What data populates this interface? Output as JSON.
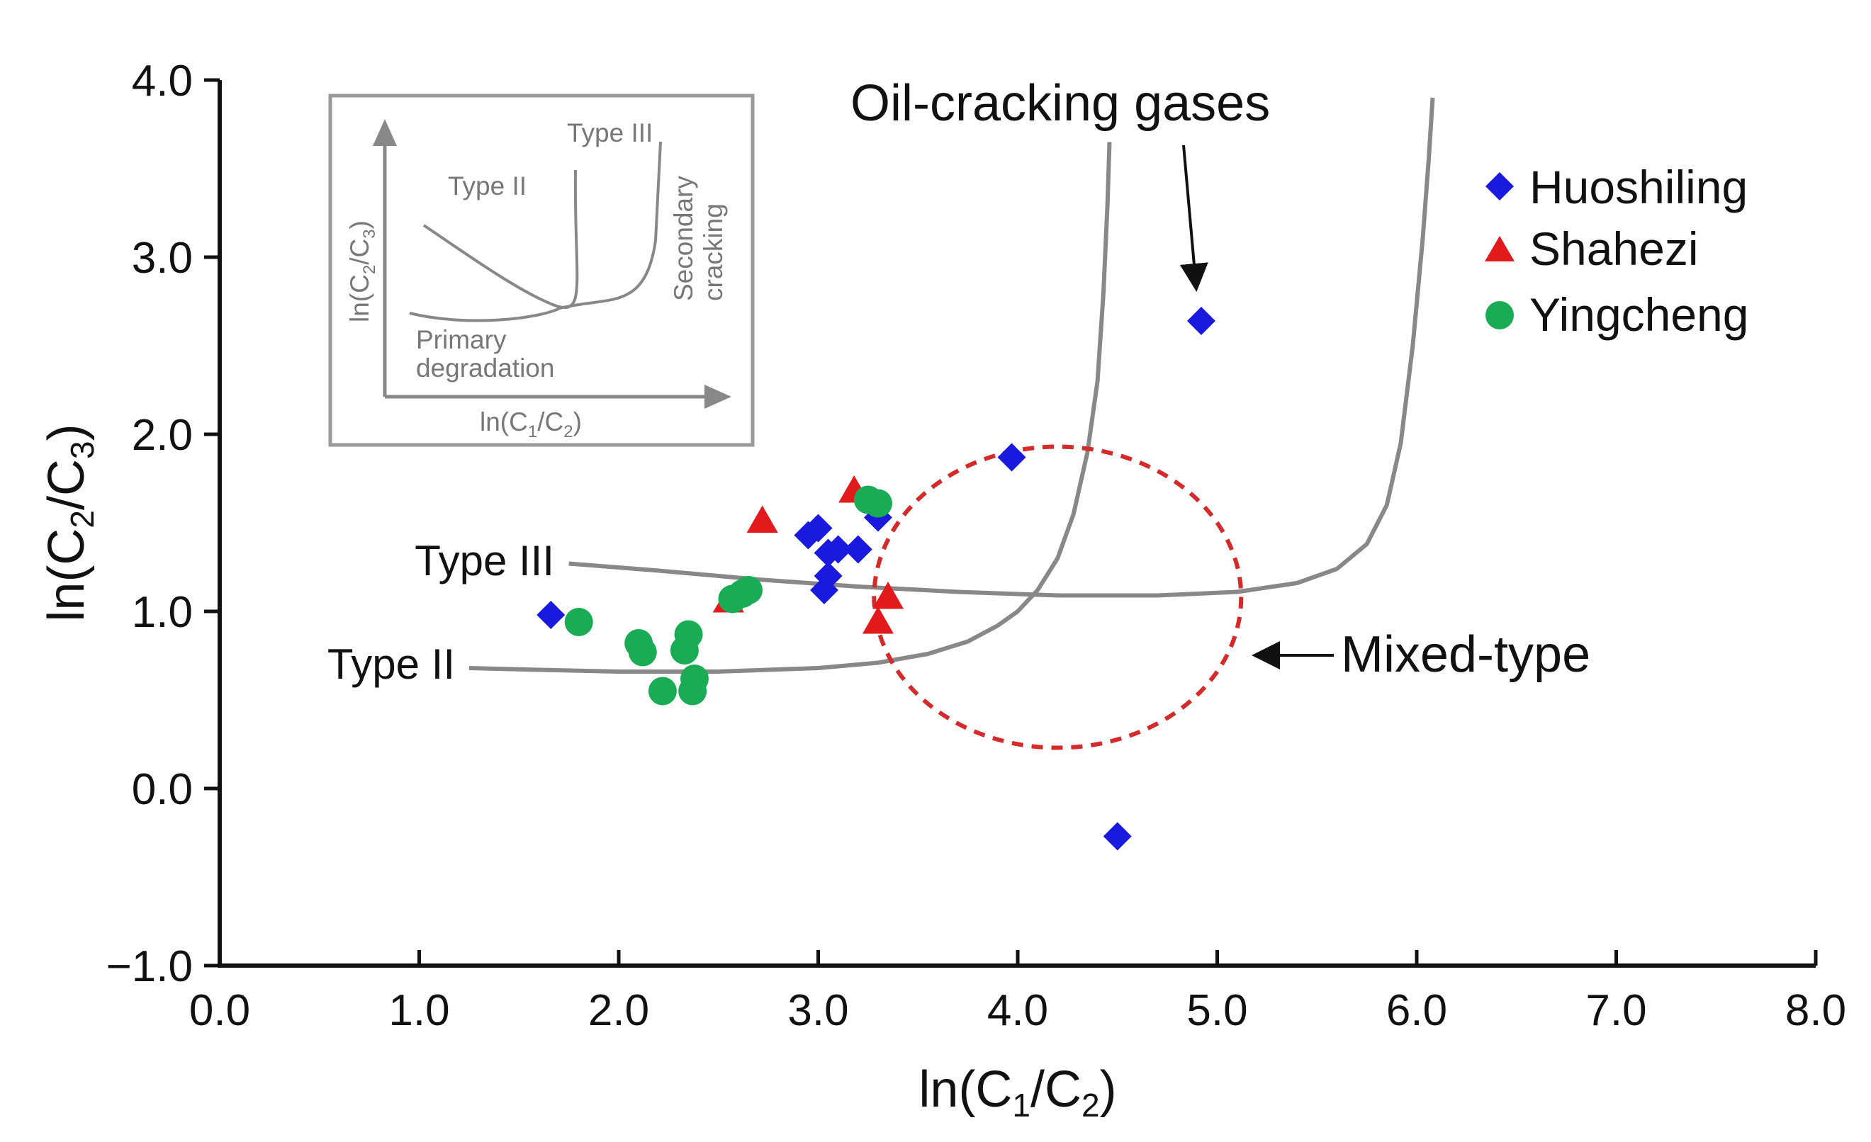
{
  "chart_data": {
    "type": "scatter",
    "xlabel": "ln(C1/C2)",
    "ylabel": "ln(C2/C3)",
    "xlim": [
      0.0,
      8.0
    ],
    "ylim": [
      -1.0,
      4.0
    ],
    "x_ticks": [
      "0.0",
      "1.0",
      "2.0",
      "3.0",
      "4.0",
      "5.0",
      "6.0",
      "7.0",
      "8.0"
    ],
    "y_ticks": [
      "−1.0",
      "0.0",
      "1.0",
      "2.0",
      "3.0",
      "4.0"
    ],
    "colors": {
      "Huoshiling": "#1a1adf",
      "Shahezi": "#e31a1c",
      "Yingcheng": "#1aab55",
      "curve": "#888888",
      "mixed": "#d42a2a"
    },
    "series": [
      {
        "name": "Huoshiling",
        "marker": "diamond",
        "points": [
          [
            1.66,
            0.98
          ],
          [
            2.95,
            1.43
          ],
          [
            3.0,
            1.47
          ],
          [
            3.05,
            1.33
          ],
          [
            3.1,
            1.35
          ],
          [
            3.2,
            1.35
          ],
          [
            3.05,
            1.2
          ],
          [
            3.03,
            1.12
          ],
          [
            3.3,
            1.53
          ],
          [
            3.97,
            1.87
          ],
          [
            4.92,
            2.64
          ],
          [
            4.5,
            -0.27
          ]
        ]
      },
      {
        "name": "Shahezi",
        "marker": "triangle",
        "points": [
          [
            2.72,
            1.51
          ],
          [
            3.18,
            1.68
          ],
          [
            2.55,
            1.06
          ],
          [
            3.35,
            1.08
          ],
          [
            3.3,
            0.94
          ]
        ]
      },
      {
        "name": "Yingcheng",
        "marker": "circle",
        "points": [
          [
            1.8,
            0.94
          ],
          [
            2.1,
            0.82
          ],
          [
            2.12,
            0.77
          ],
          [
            2.35,
            0.87
          ],
          [
            2.33,
            0.78
          ],
          [
            2.22,
            0.55
          ],
          [
            2.37,
            0.55
          ],
          [
            2.38,
            0.62
          ],
          [
            2.57,
            1.07
          ],
          [
            2.62,
            1.1
          ],
          [
            2.65,
            1.12
          ],
          [
            3.25,
            1.63
          ],
          [
            3.3,
            1.61
          ]
        ]
      }
    ],
    "curves": [
      {
        "name": "Type II",
        "label": "Type II",
        "points": [
          [
            1.25,
            0.68
          ],
          [
            1.6,
            0.67
          ],
          [
            2.0,
            0.66
          ],
          [
            2.5,
            0.66
          ],
          [
            3.0,
            0.68
          ],
          [
            3.3,
            0.71
          ],
          [
            3.55,
            0.76
          ],
          [
            3.75,
            0.83
          ],
          [
            3.9,
            0.92
          ],
          [
            4.0,
            1.0
          ],
          [
            4.1,
            1.12
          ],
          [
            4.2,
            1.3
          ],
          [
            4.28,
            1.55
          ],
          [
            4.35,
            1.9
          ],
          [
            4.4,
            2.3
          ],
          [
            4.43,
            2.8
          ],
          [
            4.45,
            3.3
          ],
          [
            4.46,
            3.65
          ]
        ]
      },
      {
        "name": "Type III",
        "label": "Type III",
        "points": [
          [
            1.75,
            1.27
          ],
          [
            2.2,
            1.23
          ],
          [
            2.7,
            1.18
          ],
          [
            3.2,
            1.14
          ],
          [
            3.7,
            1.11
          ],
          [
            4.2,
            1.09
          ],
          [
            4.7,
            1.09
          ],
          [
            5.1,
            1.11
          ],
          [
            5.4,
            1.16
          ],
          [
            5.6,
            1.24
          ],
          [
            5.75,
            1.38
          ],
          [
            5.85,
            1.6
          ],
          [
            5.92,
            1.95
          ],
          [
            5.98,
            2.5
          ],
          [
            6.03,
            3.1
          ],
          [
            6.06,
            3.55
          ],
          [
            6.08,
            3.9
          ]
        ]
      }
    ],
    "legend": [
      "Huoshiling",
      "Shahezi",
      "Yingcheng"
    ],
    "legend_position": "top-right",
    "annotations": {
      "oil_cracking": "Oil-cracking gases",
      "mixed_type": "Mixed-type"
    },
    "mixed_region": {
      "cx": 4.2,
      "cy": 1.08,
      "rx": 0.92,
      "ry": 0.85
    }
  },
  "inset": {
    "type_ii": "Type II",
    "type_iii": "Type III",
    "secondary_1": "Secondary",
    "secondary_2": "cracking",
    "primary_1": "Primary",
    "primary_2": "degradation",
    "ylabel": "ln(C2/C3)",
    "xlabel": "ln(C1/C2)"
  }
}
